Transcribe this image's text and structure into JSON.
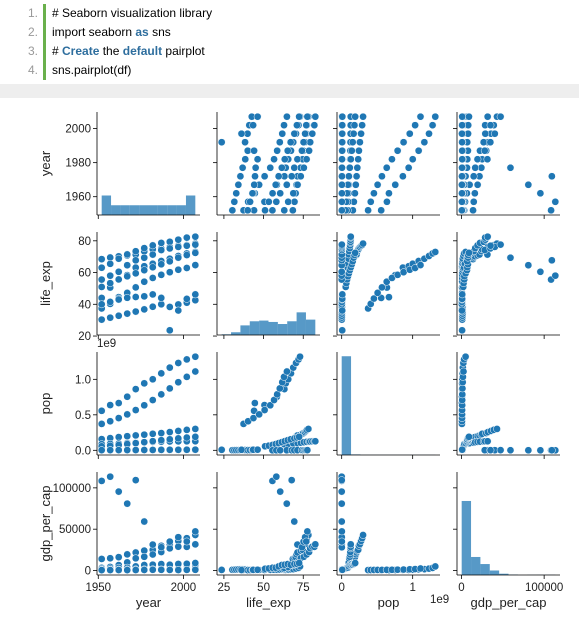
{
  "code": {
    "lines": [
      {
        "number": "1.",
        "tokens": [
          {
            "text": "# Seaborn visualization library",
            "kw": false
          }
        ]
      },
      {
        "number": "2.",
        "tokens": [
          {
            "text": "import seaborn ",
            "kw": false
          },
          {
            "text": "as",
            "kw": true
          },
          {
            "text": " sns",
            "kw": false
          }
        ]
      },
      {
        "number": "3.",
        "tokens": [
          {
            "text": "# ",
            "kw": false
          },
          {
            "text": "Create",
            "kw": true
          },
          {
            "text": " the ",
            "kw": false
          },
          {
            "text": "default",
            "kw": true
          },
          {
            "text": " pairplot",
            "kw": false
          }
        ]
      },
      {
        "number": "4.",
        "tokens": [
          {
            "text": "sns.pairplot(df)",
            "kw": false
          }
        ]
      }
    ]
  },
  "chart_data": {
    "type": "pairplot",
    "color": "#1f77b4",
    "variables": [
      {
        "name": "year",
        "lim": [
          1949.25,
          2009.75
        ],
        "xticks": [
          1950,
          2000
        ],
        "yticks": [
          1960,
          1980,
          2000
        ],
        "hist": {
          "bins": [
            1952,
            1957.5,
            1963,
            1968.5,
            1974,
            1979.5,
            1985,
            1990.5,
            1996,
            2001.5,
            2007
          ],
          "counts": [
            284,
            142,
            142,
            142,
            142,
            142,
            142,
            142,
            142,
            284
          ],
          "countlim": [
            0,
            1500
          ]
        }
      },
      {
        "name": "life_exp",
        "lim": [
          20.65,
          85.55
        ],
        "xticks": [
          25,
          50,
          75
        ],
        "yticks": [
          20,
          40,
          60,
          80
        ],
        "hist": {
          "bins": [
            23.6,
            29.5,
            35.4,
            41.3,
            47.2,
            53.1,
            59.0,
            64.9,
            70.8,
            76.7,
            82.6
          ],
          "counts": [
            10,
            40,
            140,
            200,
            210,
            190,
            160,
            200,
            330,
            224
          ],
          "countlim": [
            0,
            1500
          ]
        }
      },
      {
        "name": "pop",
        "offset": "1e9",
        "lim": [
          -0.066,
          1.385
        ],
        "xticks": [
          0,
          1
        ],
        "yticks": [
          {
            "value": 0,
            "label": "0.0"
          },
          0.5,
          {
            "value": 1,
            "label": "1.0"
          }
        ],
        "hist": {
          "bins": [
            0,
            0.132,
            0.264,
            0.396,
            0.528,
            0.66,
            0.792,
            0.924,
            1.056,
            1.188,
            1.32
          ],
          "counts": [
            1678,
            10,
            2,
            2,
            2,
            2,
            2,
            2,
            2,
            2
          ],
          "countlim": [
            0,
            1750
          ]
        }
      },
      {
        "name": "gdp_per_cap",
        "lim": [
          -5423,
          119187
        ],
        "xticks": [
          0,
          100000
        ],
        "yticks": [
          0,
          50000,
          100000
        ],
        "hist": {
          "bins": [
            241,
            11569,
            22897,
            34225,
            45553,
            56881,
            68209,
            79537,
            90865,
            102193,
            113523
          ],
          "counts": [
            1150,
            280,
            170,
            70,
            20,
            6,
            0,
            2,
            3,
            3
          ],
          "countlim": [
            0,
            1600
          ]
        }
      }
    ],
    "data": {
      "year": [
        1952,
        1957,
        1962,
        1967,
        1972,
        1977,
        1982,
        1987,
        1992,
        1997,
        2002,
        2007,
        1952,
        1957,
        1962,
        1967,
        1972,
        1977,
        1982,
        1987,
        1992,
        1997,
        2002,
        2007,
        1952,
        1957,
        1962,
        1967,
        1972,
        1977,
        1982,
        1987,
        1992,
        1997,
        2002,
        2007,
        1952,
        1957,
        1962,
        1967,
        1972,
        1977,
        1982,
        1987,
        1992,
        1997,
        2002,
        2007,
        1952,
        1957,
        1962,
        1967,
        1972,
        1977,
        1982,
        1987,
        1992,
        1997,
        2002,
        2007,
        1952,
        1957,
        1962,
        1967,
        1972,
        1977,
        1982,
        1987,
        1992,
        1997,
        2002,
        2007,
        1952,
        1957,
        1962,
        1967,
        1972,
        1977,
        1982,
        1987,
        1992,
        1997,
        2002,
        2007,
        1952,
        1957,
        1962,
        1967,
        1972,
        1977,
        1982,
        1987,
        1992,
        1997,
        2002,
        2007
      ],
      "life_exp": [
        44.0,
        50.55,
        44.5,
        58.38,
        63.12,
        63.97,
        65.53,
        67.27,
        68.69,
        70.43,
        72.03,
        72.96,
        37.37,
        40.25,
        43.61,
        47.19,
        50.65,
        54.21,
        56.6,
        58.55,
        60.22,
        61.77,
        62.88,
        64.7,
        68.44,
        69.49,
        70.21,
        70.76,
        71.34,
        73.38,
        74.65,
        75.02,
        76.09,
        76.81,
        77.31,
        78.24,
        63.03,
        65.5,
        68.73,
        71.43,
        73.42,
        75.38,
        77.11,
        78.67,
        79.36,
        80.69,
        82.0,
        82.6,
        50.92,
        53.29,
        55.67,
        57.63,
        59.5,
        61.49,
        63.34,
        65.21,
        67.06,
        69.39,
        71.01,
        72.39,
        55.57,
        58.03,
        60.47,
        64.62,
        67.71,
        69.34,
        71.31,
        74.17,
        75.19,
        76.16,
        76.9,
        77.59,
        30.33,
        31.57,
        32.77,
        34.11,
        35.4,
        36.79,
        38.45,
        40.01,
        38.33,
        39.9,
        41.01,
        42.57,
        40.0,
        41.5,
        43.0,
        44.1,
        44.6,
        45.0,
        46.22,
        44.02,
        23.6,
        36.09,
        43.41,
        46.24
      ],
      "pop": [
        0.5563,
        0.6374,
        0.6658,
        0.7547,
        0.8621,
        0.9434,
        1.0007,
        1.084,
        1.1648,
        1.2302,
        1.2805,
        1.3186,
        0.372,
        0.4094,
        0.4541,
        0.506,
        0.5671,
        0.6342,
        0.7081,
        0.788,
        0.872,
        0.959,
        1.0344,
        1.1102,
        0.1576,
        0.1719,
        0.1865,
        0.1987,
        0.2099,
        0.2202,
        0.2323,
        0.2428,
        0.2569,
        0.2729,
        0.2879,
        0.3011,
        0.0865,
        0.0913,
        0.0954,
        0.1004,
        0.1072,
        0.1139,
        0.1187,
        0.1221,
        0.1242,
        0.1259,
        0.1271,
        0.1275,
        0.0566,
        0.0654,
        0.076,
        0.0882,
        0.1009,
        0.1145,
        0.1285,
        0.1422,
        0.155,
        0.1683,
        0.1799,
        0.1901,
        0.00016,
        0.00021,
        0.00036,
        0.00058,
        0.00084,
        0.0011,
        0.0015,
        0.0019,
        0.0014,
        0.0018,
        0.0021,
        0.0025,
        0.0021,
        0.0023,
        0.0025,
        0.0027,
        0.003,
        0.0033,
        0.0036,
        0.0039,
        0.0043,
        0.0045,
        0.005,
        0.006,
        0.0025,
        0.0028,
        0.0031,
        0.0034,
        0.0039,
        0.0045,
        0.0051,
        0.0067,
        0.0074,
        0.0074,
        0.0079,
        0.0089
      ],
      "gdp_per_cap": [
        400,
        576,
        488,
        613,
        677,
        741,
        962,
        1379,
        1656,
        2289,
        3119,
        4959,
        547,
        590,
        658,
        701,
        724,
        813,
        856,
        977,
        1164,
        1459,
        1747,
        2452,
        13990,
        14847,
        16173,
        19530,
        21806,
        24073,
        25010,
        29884,
        32004,
        35767,
        39097,
        42952,
        3217,
        4318,
        6577,
        9848,
        14779,
        16610,
        19384,
        22376,
        26825,
        28817,
        28605,
        31656,
        2109,
        2487,
        3337,
        3430,
        4986,
        6660,
        7031,
        7807,
        6950,
        7958,
        8131,
        9066,
        108382,
        113523,
        95458,
        80895,
        109347,
        59265,
        31354,
        28118,
        34933,
        40301,
        35110,
        47307,
        880,
        1005,
        1147,
        1311,
        1353,
        1348,
        1465,
        1294,
        1069,
        575,
        699,
        863,
        493,
        540,
        597,
        511,
        590,
        670,
        882,
        848,
        737,
        590,
        786,
        863
      ]
    }
  }
}
